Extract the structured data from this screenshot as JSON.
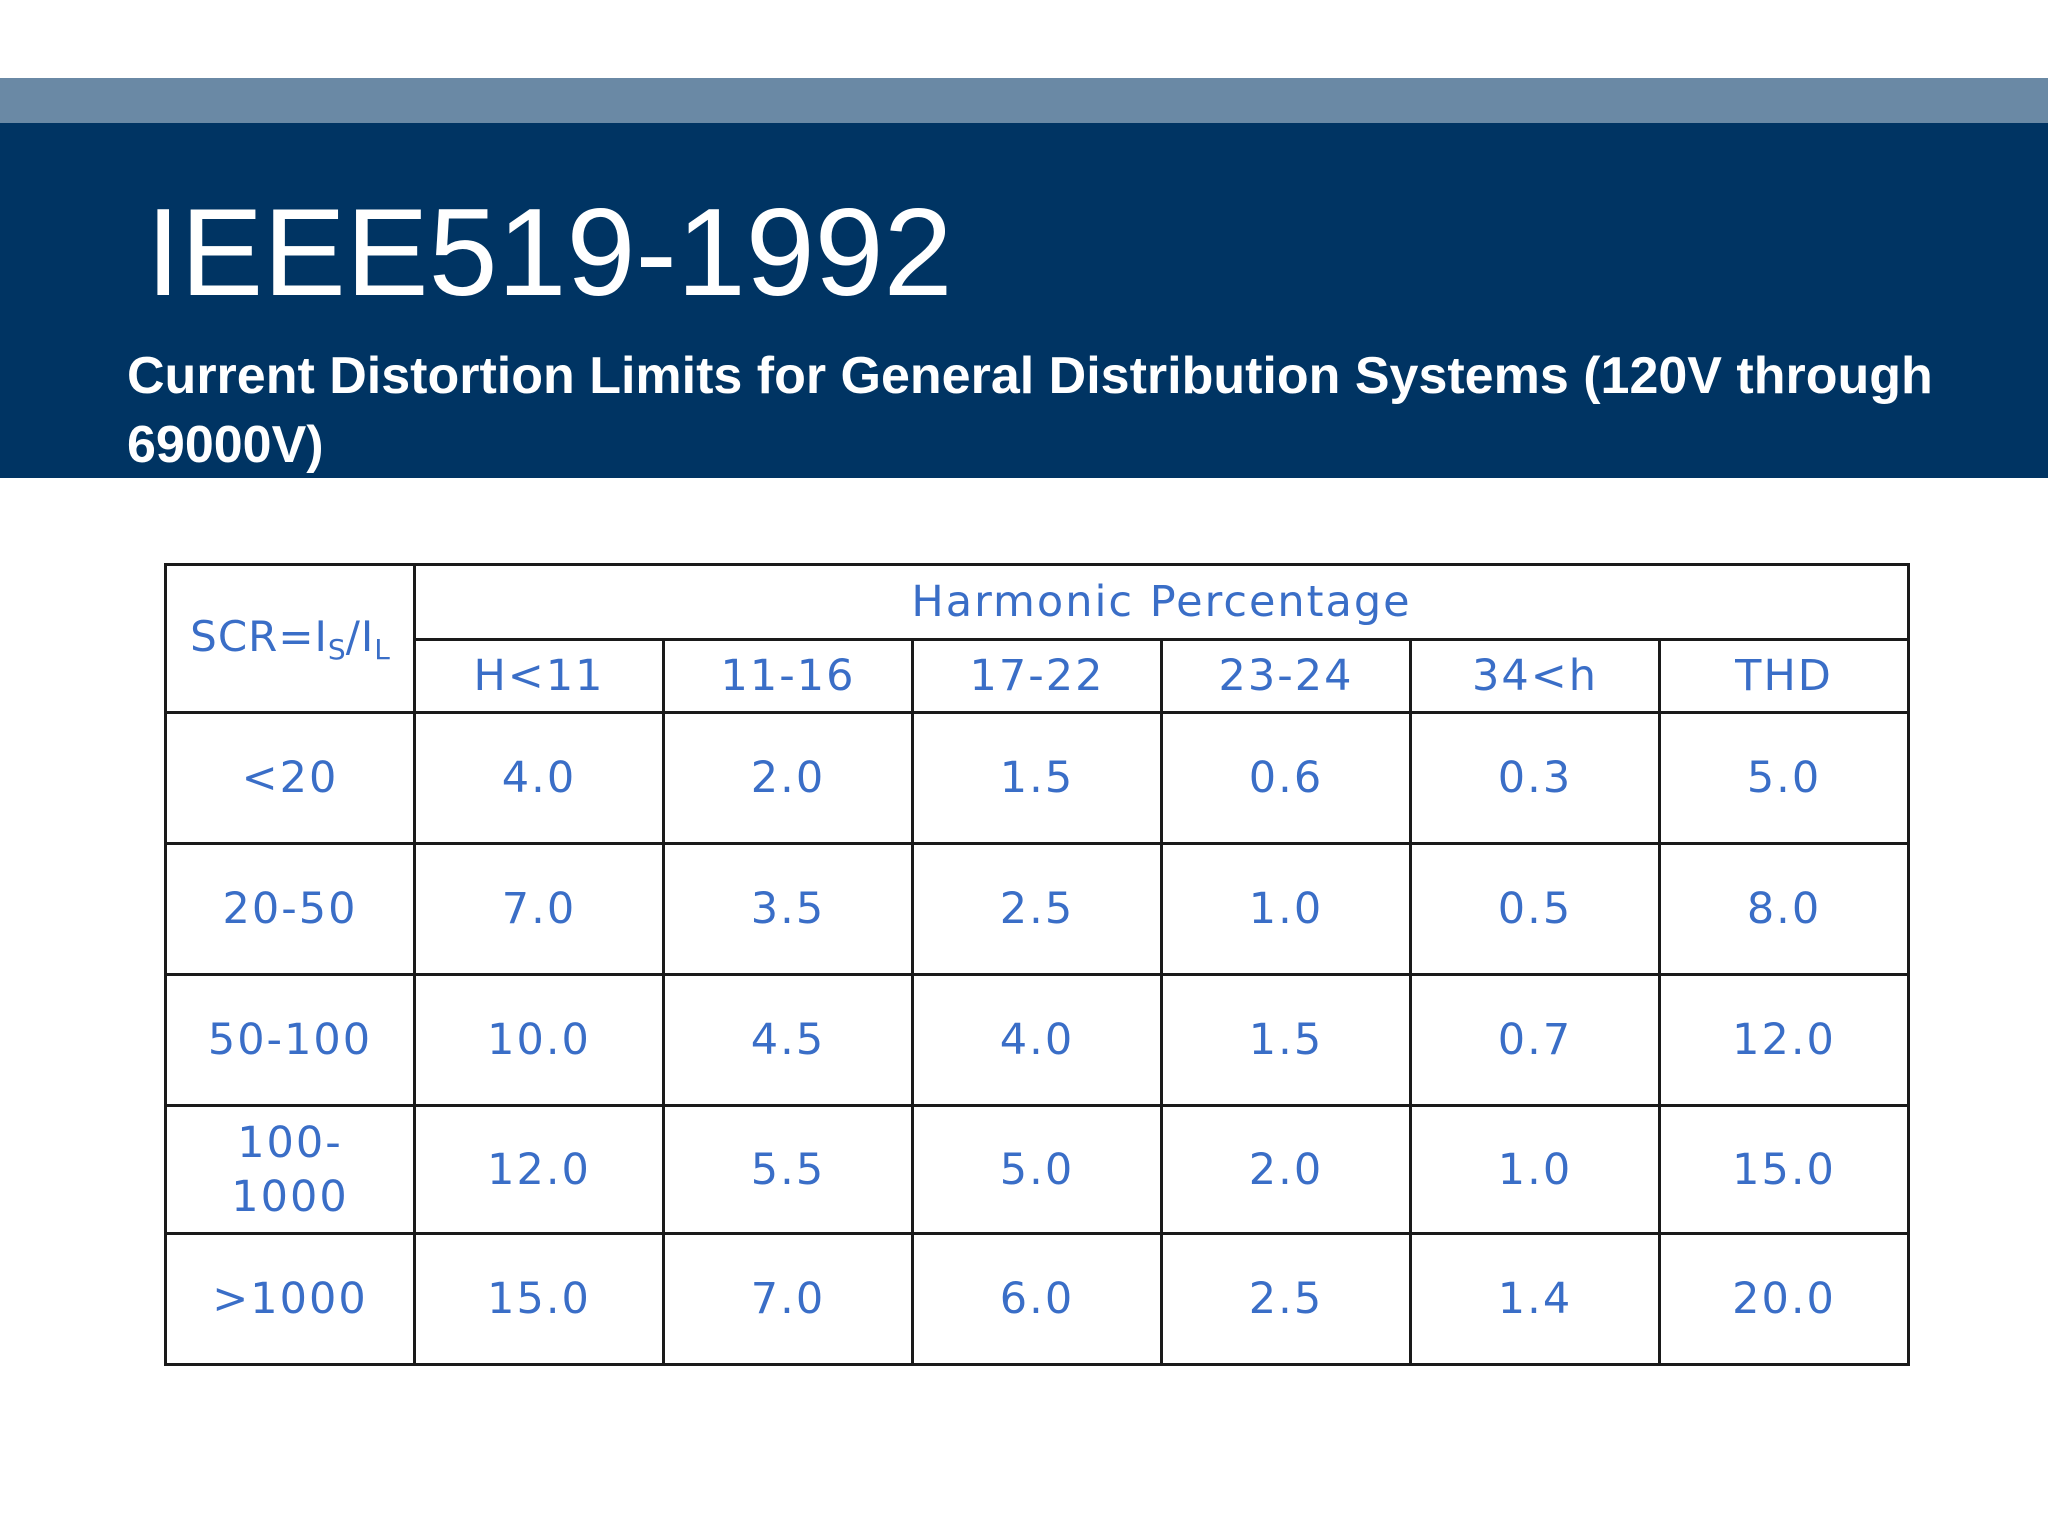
{
  "slide": {
    "title": "IEEE519-1992",
    "subtitle": "Current Distortion Limits for General Distribution Systems (120V through 69000V)"
  },
  "table": {
    "corner_header": {
      "prefix": "SCR=I",
      "sub1": "S",
      "middle": "/I",
      "sub2": "L"
    },
    "group_header": "Harmonic Percentage",
    "columns": [
      "H<11",
      "11-16",
      "17-22",
      "23-24",
      "34<h",
      "THD"
    ],
    "rows": [
      {
        "label": "<20",
        "values": [
          "4.0",
          "2.0",
          "1.5",
          "0.6",
          "0.3",
          "5.0"
        ]
      },
      {
        "label": "20-50",
        "values": [
          "7.0",
          "3.5",
          "2.5",
          "1.0",
          "0.5",
          "8.0"
        ]
      },
      {
        "label": "50-100",
        "values": [
          "10.0",
          "4.5",
          "4.0",
          "1.5",
          "0.7",
          "12.0"
        ]
      },
      {
        "label": "100-1000",
        "values": [
          "12.0",
          "5.5",
          "5.0",
          "2.0",
          "1.0",
          "15.0"
        ]
      },
      {
        "label": ">1000",
        "values": [
          "15.0",
          "7.0",
          "6.0",
          "2.5",
          "1.4",
          "20.0"
        ]
      }
    ]
  },
  "colors": {
    "header_band": "#003463",
    "accent_bar": "#6a89a5",
    "table_text": "#3a6ec7"
  }
}
